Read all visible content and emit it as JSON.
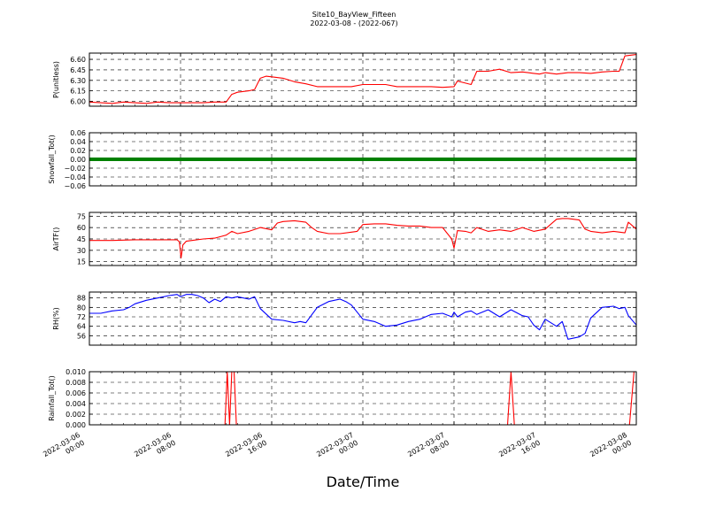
{
  "title": "Site10_BayView_Fifteen",
  "subtitle": "2022-03-08 - (2022-067)",
  "xlabel": "Date/Time",
  "x_ticks": [
    "2022-03-06\n00:00",
    "2022-03-06\n08:00",
    "2022-03-06\n16:00",
    "2022-03-07\n00:00",
    "2022-03-07\n08:00",
    "2022-03-07\n16:00",
    "2022-03-08\n00:00"
  ],
  "chart_data": [
    {
      "type": "line",
      "ylabel": "P(unitless)",
      "ylim": [
        5.93,
        6.69
      ],
      "yticks": [
        "6.00",
        "6.15",
        "6.30",
        "6.45",
        "6.60"
      ],
      "ytick_values": [
        6.0,
        6.15,
        6.3,
        6.45,
        6.6
      ],
      "grid": true,
      "color": "#ff0000",
      "x_hours": [
        0,
        1,
        2,
        3,
        4,
        5,
        6,
        7,
        8,
        9,
        10,
        11,
        12,
        12.5,
        13,
        14,
        14.5,
        15,
        15.5,
        16,
        17,
        18,
        19,
        20,
        21,
        22,
        23,
        24,
        25,
        26,
        27,
        28,
        29,
        30,
        31,
        32,
        32.3,
        33,
        33.5,
        34,
        35,
        36,
        37,
        38,
        38.5,
        39,
        39.5,
        40,
        41,
        42,
        43,
        44,
        45,
        46,
        46.5,
        47,
        48
      ],
      "y": [
        5.99,
        5.98,
        5.97,
        5.99,
        5.98,
        5.97,
        5.99,
        5.98,
        5.98,
        5.98,
        5.98,
        5.99,
        5.99,
        6.1,
        6.13,
        6.15,
        6.17,
        6.33,
        6.36,
        6.35,
        6.33,
        6.28,
        6.25,
        6.21,
        6.21,
        6.21,
        6.21,
        6.24,
        6.24,
        6.24,
        6.21,
        6.21,
        6.21,
        6.21,
        6.2,
        6.21,
        6.29,
        6.26,
        6.24,
        6.43,
        6.43,
        6.46,
        6.41,
        6.42,
        6.41,
        6.4,
        6.39,
        6.41,
        6.39,
        6.41,
        6.41,
        6.4,
        6.42,
        6.43,
        6.43,
        6.65,
        6.67
      ]
    },
    {
      "type": "line",
      "ylabel": "Snowfall_Tot()",
      "ylim": [
        -0.06,
        0.06
      ],
      "yticks": [
        "0.06",
        "0.04",
        "0.02",
        "0.00",
        "−0.02",
        "−0.04",
        "−0.06"
      ],
      "ytick_values": [
        0.06,
        0.04,
        0.02,
        0.0,
        -0.02,
        -0.04,
        -0.06
      ],
      "grid": true,
      "color": "#008000",
      "x_hours": [
        0,
        48
      ],
      "y": [
        0,
        0
      ]
    },
    {
      "type": "line",
      "ylabel": "AirTF()",
      "ylim": [
        10,
        80
      ],
      "yticks": [
        "75",
        "60",
        "45",
        "30",
        "15"
      ],
      "ytick_values": [
        75,
        60,
        45,
        30,
        15
      ],
      "grid": true,
      "color": "#ff0000",
      "x_hours": [
        0,
        2,
        4,
        6,
        7.7,
        7.9,
        8.05,
        8.2,
        8.5,
        9,
        10,
        11,
        12,
        12.5,
        13,
        14,
        15,
        16,
        16.5,
        17,
        18,
        19,
        19.5,
        20,
        21,
        22,
        23,
        23.5,
        24,
        25,
        26,
        27,
        28,
        29,
        30,
        31,
        31.8,
        32,
        32.3,
        33,
        33.5,
        34,
        35,
        36,
        37,
        38,
        39,
        40,
        41,
        41.5,
        42,
        43,
        43.5,
        44,
        45,
        46,
        47,
        47.3,
        48
      ],
      "y": [
        43,
        43,
        44,
        44,
        44,
        41,
        20,
        37,
        42,
        43,
        45,
        46,
        50,
        55,
        52,
        55,
        60,
        57,
        66,
        68,
        69,
        67,
        60,
        55,
        52,
        52,
        54,
        55,
        64,
        65,
        65,
        63,
        62,
        62,
        60,
        60,
        45,
        33,
        56,
        55,
        53,
        60,
        55,
        57,
        55,
        60,
        55,
        58,
        71,
        72,
        72,
        70,
        58,
        55,
        53,
        55,
        53,
        67,
        58
      ]
    },
    {
      "type": "line",
      "ylabel": "RH(%)",
      "ylim": [
        48,
        93
      ],
      "yticks": [
        "88",
        "80",
        "72",
        "64",
        "56"
      ],
      "ytick_values": [
        88,
        80,
        72,
        64,
        56
      ],
      "grid": true,
      "color": "#0000ff",
      "x_hours": [
        0,
        1,
        2,
        3,
        3.5,
        4,
        5,
        6,
        7,
        7.7,
        8,
        8.5,
        9,
        9.5,
        10,
        10.5,
        11,
        11.5,
        12,
        12.5,
        13,
        14,
        14.5,
        15,
        16,
        17,
        18,
        18.5,
        19,
        20,
        21,
        22,
        22.5,
        23,
        24,
        25,
        26,
        27,
        28,
        29,
        30,
        31,
        31.8,
        32,
        32.3,
        33,
        33.5,
        34,
        35,
        36,
        37,
        38,
        38.5,
        39,
        39.5,
        40,
        41,
        41.5,
        42,
        43,
        43.5,
        44,
        45,
        46,
        46.5,
        47,
        47.3,
        48
      ],
      "y": [
        75,
        75,
        77,
        78,
        80,
        83,
        86,
        88,
        90,
        91,
        89,
        91,
        91,
        90,
        88,
        84,
        87,
        85,
        89,
        88,
        89,
        87,
        89,
        79,
        70,
        69,
        67,
        68,
        67,
        80,
        85,
        87,
        85,
        82,
        70,
        68,
        64,
        65,
        68,
        70,
        74,
        75,
        72,
        76,
        72,
        76,
        77,
        74,
        78,
        72,
        78,
        73,
        72,
        65,
        61,
        70,
        64,
        68,
        53,
        55,
        58,
        71,
        80,
        81,
        79,
        80,
        73,
        65
      ]
    },
    {
      "type": "line",
      "ylabel": "Rainfall_Tot()",
      "ylim": [
        0,
        0.01
      ],
      "yticks": [
        "0.010",
        "0.008",
        "0.006",
        "0.004",
        "0.002",
        "0.000"
      ],
      "ytick_values": [
        0.01,
        0.008,
        0.006,
        0.004,
        0.002,
        0.0
      ],
      "grid": true,
      "color": "#ff0000",
      "x_hours": [
        0,
        11.9,
        12.1,
        12.3,
        12.5,
        12.7,
        12.9,
        36.7,
        37.0,
        37.3,
        47.4,
        47.8,
        48
      ],
      "y": [
        0,
        0,
        0.01,
        0,
        0.01,
        0.01,
        0,
        0,
        0.01,
        0,
        0,
        0.01,
        0.01
      ]
    }
  ]
}
